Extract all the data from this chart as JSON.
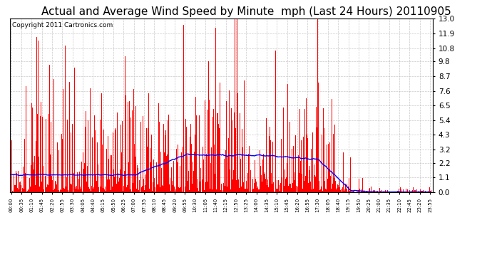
{
  "title": "Actual and Average Wind Speed by Minute  mph (Last 24 Hours) 20110905",
  "copyright": "Copyright 2011 Cartronics.com",
  "y_ticks": [
    0.0,
    1.1,
    2.2,
    3.2,
    4.3,
    5.4,
    6.5,
    7.6,
    8.7,
    9.8,
    10.8,
    11.9,
    13.0
  ],
  "ylim": [
    0.0,
    13.0
  ],
  "bar_color": "#ff0000",
  "line_color": "#0000ff",
  "bg_color": "#ffffff",
  "grid_color": "#bbbbbb",
  "title_fontsize": 11,
  "copyright_fontsize": 6.5,
  "tick_interval_min": 35
}
